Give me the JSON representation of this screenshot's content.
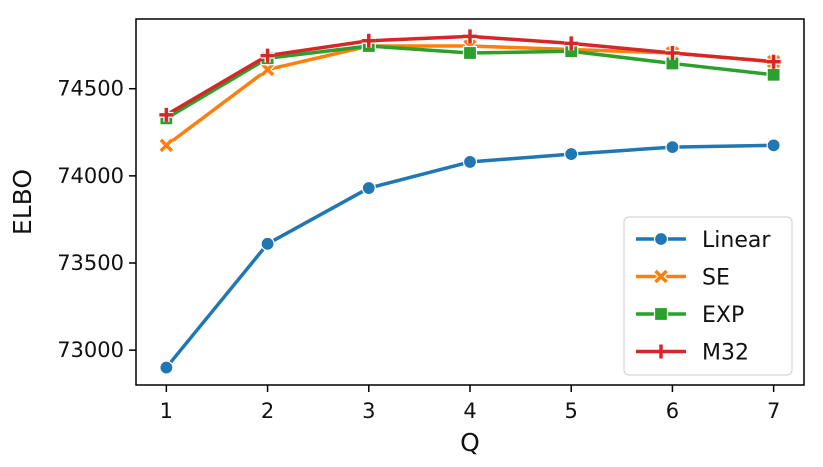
{
  "chart_data": {
    "type": "line",
    "xlabel": "Q",
    "ylabel": "ELBO",
    "x": [
      1,
      2,
      3,
      4,
      5,
      6,
      7
    ],
    "xticks": [
      "1",
      "2",
      "3",
      "4",
      "5",
      "6",
      "7"
    ],
    "yticks": [
      73000,
      73500,
      74000,
      74500
    ],
    "ytick_labels": [
      "73000",
      "73500",
      "74000",
      "74500"
    ],
    "xlim": [
      0.7,
      7.3
    ],
    "ylim": [
      72800,
      74900
    ],
    "grid": false,
    "legend_position": "lower-right",
    "series": [
      {
        "name": "Linear",
        "color": "#1f77b4",
        "marker": "circle",
        "values": [
          72900,
          73610,
          73930,
          74080,
          74125,
          74165,
          74175
        ]
      },
      {
        "name": "SE",
        "color": "#ff7f0e",
        "marker": "x",
        "values": [
          74175,
          74610,
          74745,
          74745,
          74725,
          74705,
          74655
        ]
      },
      {
        "name": "EXP",
        "color": "#2ca02c",
        "marker": "square",
        "values": [
          74330,
          74675,
          74745,
          74705,
          74715,
          74645,
          74580
        ]
      },
      {
        "name": "M32",
        "color": "#d62728",
        "marker": "plus",
        "values": [
          74350,
          74690,
          74775,
          74800,
          74760,
          74705,
          74655
        ]
      }
    ]
  }
}
